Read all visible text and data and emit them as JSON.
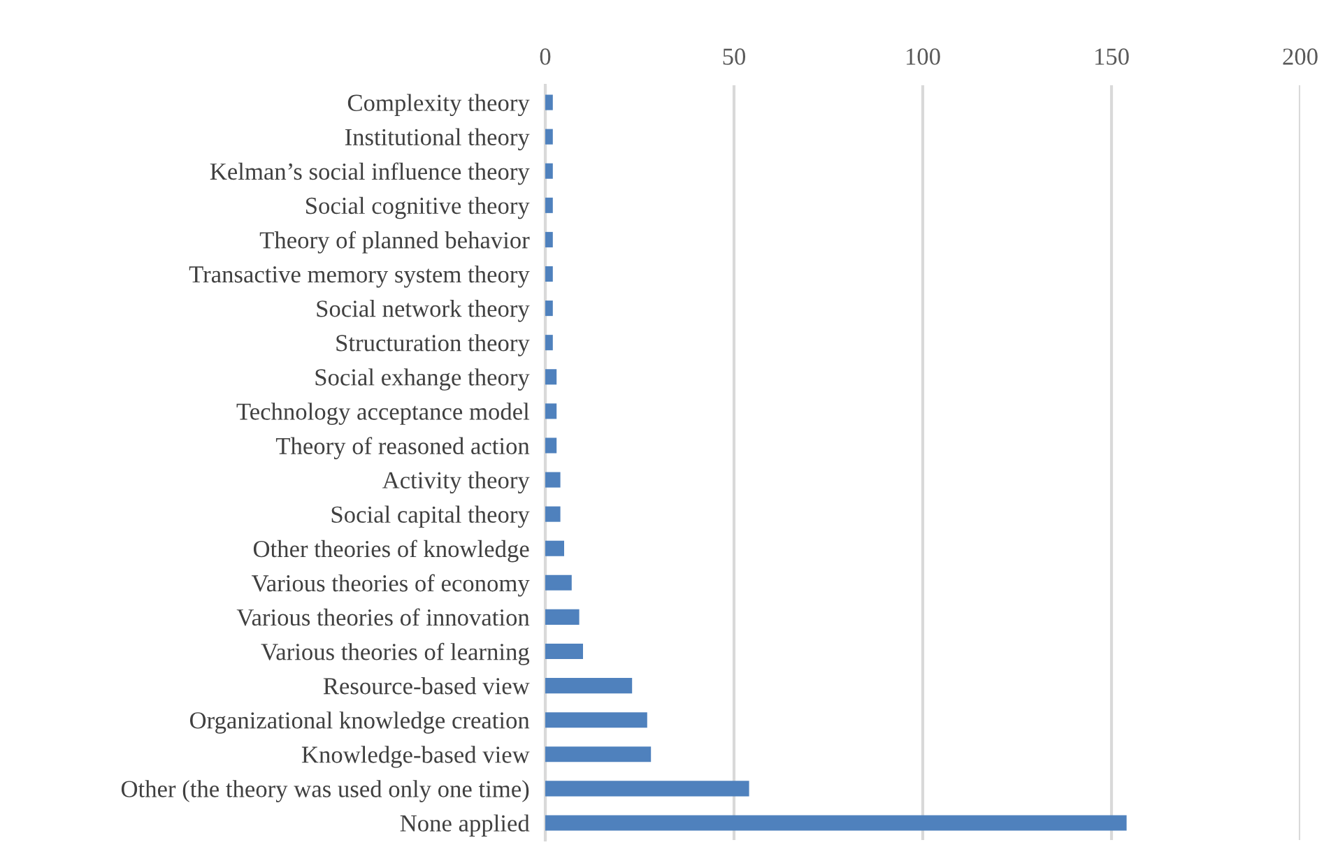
{
  "chart_data": {
    "type": "bar",
    "orientation": "horizontal",
    "categories": [
      "Complexity theory",
      "Institutional theory",
      "Kelman’s social influence theory",
      "Social cognitive theory",
      "Theory of planned behavior",
      "Transactive memory system theory",
      "Social network theory",
      "Structuration theory",
      "Social exhange theory",
      "Technology acceptance model",
      "Theory of reasoned action",
      "Activity theory",
      "Social capital theory",
      "Other theories of knowledge",
      "Various theories of economy",
      "Various theories of innovation",
      "Various theories of learning",
      "Resource-based view",
      "Organizational knowledge creation",
      "Knowledge-based view",
      "Other (the theory was used only one time)",
      "None applied"
    ],
    "values": [
      2,
      2,
      2,
      2,
      2,
      2,
      2,
      2,
      3,
      3,
      3,
      4,
      4,
      5,
      7,
      9,
      10,
      23,
      27,
      28,
      54,
      154
    ],
    "color": "#4f81bd",
    "xlim": [
      0,
      200
    ],
    "xticks": [
      0,
      50,
      100,
      150,
      200
    ],
    "grid": "x",
    "legend": false
  }
}
